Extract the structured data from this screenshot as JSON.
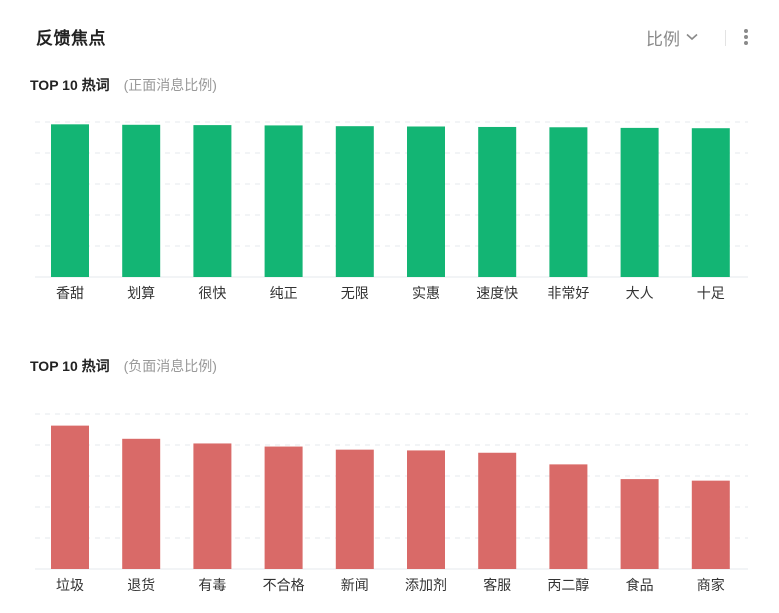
{
  "header": {
    "title": "反馈焦点",
    "ratio_label": "比例"
  },
  "colors": {
    "positive": "#13b574",
    "negative": "#d96a68",
    "grid": "#e4e9ee"
  },
  "sections": [
    {
      "title": "TOP 10 热词",
      "subtitle": "(正面消息比例)"
    },
    {
      "title": "TOP 10 热词",
      "subtitle": "(负面消息比例)"
    }
  ],
  "chart_data": [
    {
      "type": "bar",
      "title": "TOP 10 热词 (正面消息比例)",
      "categories": [
        "香甜",
        "划算",
        "很快",
        "纯正",
        "无限",
        "实惠",
        "速度快",
        "非常好",
        "大人",
        "十足"
      ],
      "values": [
        98.5,
        98.2,
        98.0,
        97.8,
        97.3,
        97.1,
        96.8,
        96.6,
        96.2,
        96.0
      ],
      "ylim": [
        0,
        100
      ],
      "grid": true,
      "xlabel": "",
      "ylabel": ""
    },
    {
      "type": "bar",
      "title": "TOP 10 热词 (负面消息比例)",
      "categories": [
        "垃圾",
        "退货",
        "有毒",
        "不合格",
        "新闻",
        "添加剂",
        "客服",
        "丙二醇",
        "食品",
        "商家"
      ],
      "values": [
        92.5,
        84.0,
        81.0,
        79.0,
        77.0,
        76.5,
        75.0,
        67.5,
        58.0,
        57.0
      ],
      "ylim": [
        0,
        100
      ],
      "grid": true,
      "xlabel": "",
      "ylabel": ""
    }
  ]
}
